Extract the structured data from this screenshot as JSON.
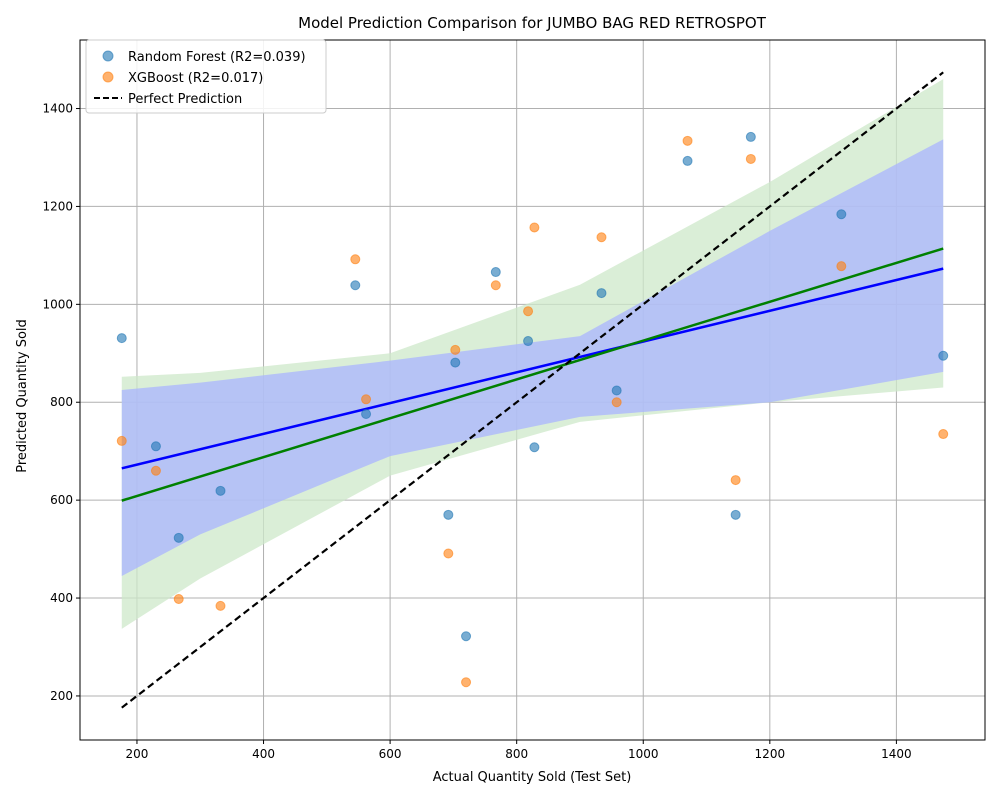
{
  "chart_data": {
    "type": "scatter",
    "title": "Model Prediction Comparison for JUMBO BAG RED RETROSPOT",
    "xlabel": "Actual Quantity Sold (Test Set)",
    "ylabel": "Predicted Quantity Sold",
    "xlim": [
      110,
      1540
    ],
    "ylim": [
      110,
      1540
    ],
    "xticks": [
      200,
      400,
      600,
      800,
      1000,
      1200,
      1400
    ],
    "yticks": [
      200,
      400,
      600,
      800,
      1000,
      1200,
      1400
    ],
    "grid": true,
    "legend_position": "top-left",
    "series": [
      {
        "name": "Random Forest (R2=0.039)",
        "color": "#1f77b4",
        "fit_color": "#0000ff",
        "band_color": "#aab4ff",
        "fit": {
          "x": [
            176,
            1474
          ],
          "y": [
            665,
            1073
          ]
        },
        "band": {
          "x": [
            176,
            300,
            600,
            900,
            1200,
            1474
          ],
          "lower": [
            445,
            530,
            690,
            770,
            800,
            862
          ],
          "upper": [
            825,
            840,
            885,
            935,
            1150,
            1337
          ]
        },
        "points": [
          {
            "x": 176,
            "y": 931
          },
          {
            "x": 230,
            "y": 710
          },
          {
            "x": 266,
            "y": 523
          },
          {
            "x": 332,
            "y": 619
          },
          {
            "x": 545,
            "y": 1039
          },
          {
            "x": 562,
            "y": 776
          },
          {
            "x": 692,
            "y": 570
          },
          {
            "x": 703,
            "y": 881
          },
          {
            "x": 720,
            "y": 322
          },
          {
            "x": 767,
            "y": 1066
          },
          {
            "x": 818,
            "y": 925
          },
          {
            "x": 828,
            "y": 708
          },
          {
            "x": 934,
            "y": 1023
          },
          {
            "x": 958,
            "y": 824
          },
          {
            "x": 1070,
            "y": 1293
          },
          {
            "x": 1146,
            "y": 570
          },
          {
            "x": 1170,
            "y": 1342
          },
          {
            "x": 1313,
            "y": 1184
          },
          {
            "x": 1474,
            "y": 895
          }
        ]
      },
      {
        "name": "XGBoost (R2=0.017)",
        "color": "#ff7f0e",
        "fit_color": "#008000",
        "band_color": "#cde8c9",
        "fit": {
          "x": [
            176,
            1474
          ],
          "y": [
            599,
            1114
          ]
        },
        "band": {
          "x": [
            176,
            300,
            600,
            900,
            1200,
            1474
          ],
          "lower": [
            337,
            440,
            650,
            760,
            800,
            830
          ],
          "upper": [
            852,
            860,
            900,
            1040,
            1250,
            1460
          ]
        },
        "points": [
          {
            "x": 176,
            "y": 721
          },
          {
            "x": 230,
            "y": 660
          },
          {
            "x": 266,
            "y": 398
          },
          {
            "x": 332,
            "y": 384
          },
          {
            "x": 545,
            "y": 1092
          },
          {
            "x": 562,
            "y": 806
          },
          {
            "x": 692,
            "y": 491
          },
          {
            "x": 703,
            "y": 907
          },
          {
            "x": 720,
            "y": 228
          },
          {
            "x": 767,
            "y": 1039
          },
          {
            "x": 818,
            "y": 986
          },
          {
            "x": 828,
            "y": 1157
          },
          {
            "x": 934,
            "y": 1137
          },
          {
            "x": 958,
            "y": 800
          },
          {
            "x": 1070,
            "y": 1334
          },
          {
            "x": 1146,
            "y": 641
          },
          {
            "x": 1170,
            "y": 1297
          },
          {
            "x": 1313,
            "y": 1078
          },
          {
            "x": 1474,
            "y": 735
          }
        ]
      }
    ],
    "reference_line": {
      "name": "Perfect Prediction",
      "color": "#000000",
      "x": [
        176,
        1474
      ],
      "y": [
        176,
        1474
      ]
    }
  }
}
